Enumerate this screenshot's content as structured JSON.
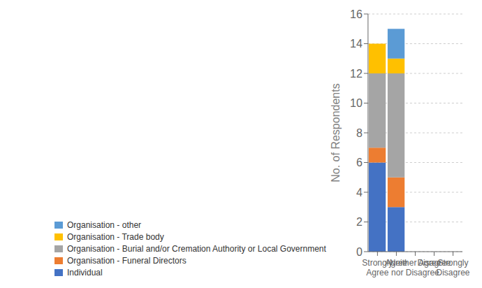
{
  "chart_data": {
    "type": "bar",
    "stacked": true,
    "categories": [
      "Strongly\nAgree",
      "Agree",
      "Neither Agree\nnor Disagree",
      "Disagree",
      "Strongly\nDisagree"
    ],
    "series": [
      {
        "name": "Individual",
        "color": "#4472C4",
        "values": [
          6,
          3,
          0,
          0,
          0
        ]
      },
      {
        "name": "Organisation - Funeral Directors",
        "color": "#ED7D31",
        "values": [
          1,
          2,
          0,
          0,
          0
        ]
      },
      {
        "name": "Organisation - Burial and/or Cremation Authority or Local Government",
        "color": "#A5A5A5",
        "values": [
          5,
          7,
          0,
          0,
          0
        ]
      },
      {
        "name": "Organisation - Trade body",
        "color": "#FFC000",
        "values": [
          2,
          1,
          0,
          0,
          0
        ]
      },
      {
        "name": "Organisation - other",
        "color": "#5B9BD5",
        "values": [
          0,
          2,
          0,
          0,
          0
        ]
      }
    ],
    "ylabel": "No. of Respondents",
    "ylim": [
      0,
      16
    ],
    "yticks": [
      0,
      2,
      4,
      6,
      8,
      10,
      12,
      14,
      16
    ],
    "grid": true,
    "legend": "lower left"
  }
}
